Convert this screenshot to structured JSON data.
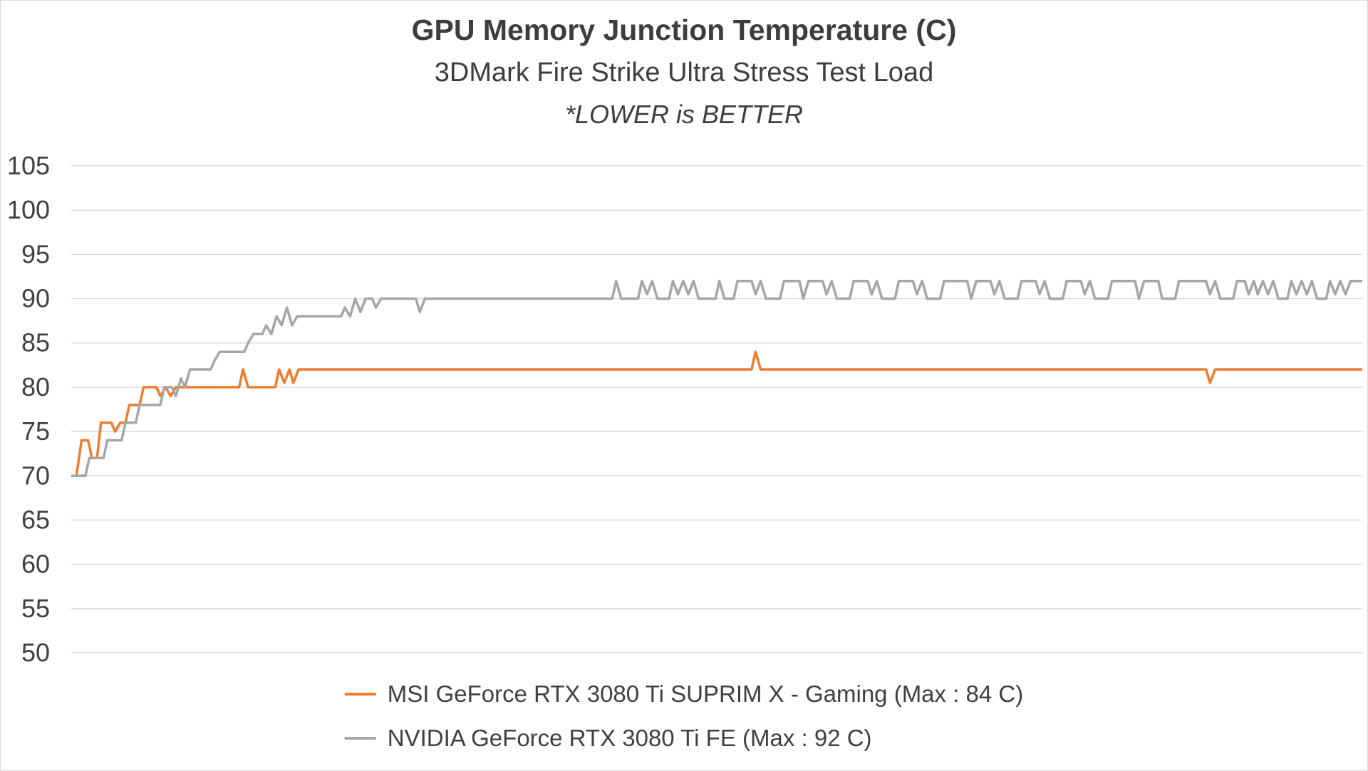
{
  "page": {
    "background": "#ffffff",
    "border_color": "#d9d9d9"
  },
  "chart_data": {
    "type": "line",
    "title": "GPU Memory Junction Temperature (C)",
    "subtitle": "3DMark Fire Strike Ultra Stress Test Load",
    "note": "*LOWER is BETTER",
    "xlabel": "",
    "ylabel": "",
    "x_range": [
      0,
      100
    ],
    "ylim": [
      50,
      105
    ],
    "yticks": [
      105,
      100,
      95,
      90,
      85,
      80,
      75,
      70,
      65,
      60,
      55,
      50
    ],
    "grid": true,
    "legend_position": "bottom",
    "colors": {
      "grid": "#d9d9d9",
      "text": "#404040"
    },
    "series": [
      {
        "id": "msi-suprim-x",
        "name": "MSI GeForce RTX 3080 Ti SUPRIM X - Gaming (Max : 84 C)",
        "color": "#ED7D31",
        "max": 84,
        "points": [
          [
            0,
            70
          ],
          [
            0.4,
            70
          ],
          [
            0.8,
            74
          ],
          [
            1.3,
            74
          ],
          [
            1.6,
            72
          ],
          [
            2.0,
            72
          ],
          [
            2.3,
            76
          ],
          [
            3.1,
            76
          ],
          [
            3.4,
            75
          ],
          [
            3.8,
            76
          ],
          [
            4.2,
            76
          ],
          [
            4.5,
            78
          ],
          [
            5.3,
            78
          ],
          [
            5.6,
            80
          ],
          [
            6.6,
            80
          ],
          [
            6.9,
            79
          ],
          [
            7.3,
            80
          ],
          [
            7.7,
            79
          ],
          [
            8.1,
            80
          ],
          [
            13.0,
            80
          ],
          [
            13.3,
            82
          ],
          [
            13.7,
            80
          ],
          [
            15.8,
            80
          ],
          [
            16.1,
            82
          ],
          [
            16.5,
            80.5
          ],
          [
            16.9,
            82
          ],
          [
            17.2,
            80.5
          ],
          [
            17.6,
            82
          ],
          [
            52.7,
            82
          ],
          [
            53.0,
            84
          ],
          [
            53.4,
            82
          ],
          [
            87.9,
            82
          ],
          [
            88.2,
            80.5
          ],
          [
            88.6,
            82
          ],
          [
            100,
            82
          ]
        ]
      },
      {
        "id": "nvidia-fe",
        "name": "NVIDIA GeForce RTX 3080 Ti FE (Max : 92 C)",
        "color": "#A6A6A6",
        "max": 92,
        "points": [
          [
            0,
            70
          ],
          [
            1.1,
            70
          ],
          [
            1.4,
            72
          ],
          [
            2.5,
            72
          ],
          [
            2.8,
            74
          ],
          [
            3.9,
            74
          ],
          [
            4.2,
            76
          ],
          [
            5.0,
            76
          ],
          [
            5.3,
            78
          ],
          [
            6.9,
            78
          ],
          [
            7.2,
            80
          ],
          [
            7.8,
            80
          ],
          [
            8.1,
            79
          ],
          [
            8.5,
            81
          ],
          [
            8.8,
            80
          ],
          [
            9.2,
            82
          ],
          [
            10.8,
            82
          ],
          [
            11.1,
            83
          ],
          [
            11.5,
            84
          ],
          [
            13.4,
            84
          ],
          [
            13.7,
            85
          ],
          [
            14.1,
            86
          ],
          [
            14.8,
            86
          ],
          [
            15.1,
            87
          ],
          [
            15.5,
            86
          ],
          [
            15.9,
            88
          ],
          [
            16.3,
            87
          ],
          [
            16.7,
            89
          ],
          [
            17.1,
            87
          ],
          [
            17.5,
            88
          ],
          [
            20.9,
            88
          ],
          [
            21.2,
            89
          ],
          [
            21.6,
            88
          ],
          [
            22.0,
            90
          ],
          [
            22.4,
            88.5
          ],
          [
            22.8,
            90
          ],
          [
            23.3,
            90
          ],
          [
            23.6,
            89
          ],
          [
            24.0,
            90
          ],
          [
            26.7,
            90
          ],
          [
            27.0,
            88.5
          ],
          [
            27.4,
            90
          ],
          [
            41.9,
            90
          ],
          [
            42.2,
            92
          ],
          [
            42.6,
            90
          ],
          [
            43.9,
            90
          ],
          [
            44.2,
            92
          ],
          [
            44.6,
            90.5
          ],
          [
            45.0,
            92
          ],
          [
            45.4,
            90
          ],
          [
            46.3,
            90
          ],
          [
            46.6,
            92
          ],
          [
            47.0,
            90.5
          ],
          [
            47.4,
            92
          ],
          [
            47.8,
            90.5
          ],
          [
            48.2,
            92
          ],
          [
            48.6,
            90
          ],
          [
            49.9,
            90
          ],
          [
            50.2,
            92
          ],
          [
            50.6,
            90
          ],
          [
            51.3,
            90
          ],
          [
            51.6,
            92
          ],
          [
            52.7,
            92
          ],
          [
            53.0,
            90.5
          ],
          [
            53.4,
            92
          ],
          [
            53.8,
            90
          ],
          [
            54.9,
            90
          ],
          [
            55.2,
            92
          ],
          [
            56.4,
            92
          ],
          [
            56.7,
            90
          ],
          [
            57.1,
            92
          ],
          [
            58.2,
            92
          ],
          [
            58.5,
            90.5
          ],
          [
            58.9,
            92
          ],
          [
            59.3,
            90
          ],
          [
            60.3,
            90
          ],
          [
            60.6,
            92
          ],
          [
            61.7,
            92
          ],
          [
            62.0,
            90.5
          ],
          [
            62.4,
            92
          ],
          [
            62.8,
            90
          ],
          [
            63.8,
            90
          ],
          [
            64.1,
            92
          ],
          [
            65.2,
            92
          ],
          [
            65.5,
            90.5
          ],
          [
            65.9,
            92
          ],
          [
            66.3,
            90
          ],
          [
            67.3,
            90
          ],
          [
            67.6,
            92
          ],
          [
            69.4,
            92
          ],
          [
            69.7,
            90
          ],
          [
            70.1,
            92
          ],
          [
            71.2,
            92
          ],
          [
            71.5,
            90.5
          ],
          [
            71.9,
            92
          ],
          [
            72.3,
            90
          ],
          [
            73.3,
            90
          ],
          [
            73.6,
            92
          ],
          [
            74.7,
            92
          ],
          [
            75.0,
            90.5
          ],
          [
            75.4,
            92
          ],
          [
            75.8,
            90
          ],
          [
            76.8,
            90
          ],
          [
            77.1,
            92
          ],
          [
            78.2,
            92
          ],
          [
            78.5,
            90.5
          ],
          [
            78.9,
            92
          ],
          [
            79.3,
            90
          ],
          [
            80.3,
            90
          ],
          [
            80.6,
            92
          ],
          [
            82.4,
            92
          ],
          [
            82.7,
            90
          ],
          [
            83.1,
            92
          ],
          [
            84.2,
            92
          ],
          [
            84.5,
            90
          ],
          [
            85.5,
            90
          ],
          [
            85.8,
            92
          ],
          [
            87.9,
            92
          ],
          [
            88.2,
            90.5
          ],
          [
            88.6,
            92
          ],
          [
            89.0,
            90
          ],
          [
            90.0,
            90
          ],
          [
            90.3,
            92
          ],
          [
            90.9,
            92
          ],
          [
            91.2,
            90.5
          ],
          [
            91.6,
            92
          ],
          [
            91.9,
            90.5
          ],
          [
            92.3,
            92
          ],
          [
            92.7,
            90.5
          ],
          [
            93.1,
            92
          ],
          [
            93.5,
            90
          ],
          [
            94.2,
            90
          ],
          [
            94.5,
            92
          ],
          [
            94.9,
            90.5
          ],
          [
            95.3,
            92
          ],
          [
            95.7,
            90.5
          ],
          [
            96.1,
            92
          ],
          [
            96.5,
            90
          ],
          [
            97.2,
            90
          ],
          [
            97.5,
            92
          ],
          [
            97.9,
            90.5
          ],
          [
            98.3,
            92
          ],
          [
            98.7,
            90.5
          ],
          [
            99.1,
            92
          ],
          [
            100,
            92
          ]
        ]
      }
    ]
  }
}
